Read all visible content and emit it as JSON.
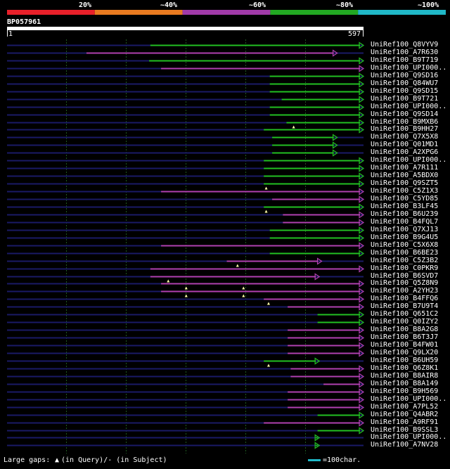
{
  "legend": {
    "labels": [
      "20%",
      "~40%",
      "~60%",
      "~80%",
      "~100%"
    ],
    "colors": [
      "#e8202a",
      "#e87a20",
      "#a03aa8",
      "#22a822",
      "#20b8c8"
    ]
  },
  "query": {
    "id": "BP057961",
    "start": "1",
    "end": "597",
    "length": 597
  },
  "colors": {
    "green": "#22c022",
    "magenta": "#b040b0",
    "backbone": "#1a1a66"
  },
  "hits": [
    {
      "name": "UniRef100_Q8VYV9",
      "start": 240,
      "end": 597,
      "color": "green",
      "gaps": []
    },
    {
      "name": "UniRef100_A7R630",
      "start": 133,
      "end": 553,
      "color": "magenta",
      "gaps": []
    },
    {
      "name": "UniRef100_B9T719",
      "start": 238,
      "end": 597,
      "color": "green",
      "gaps": []
    },
    {
      "name": "UniRef100_UPI000..",
      "start": 258,
      "end": 597,
      "color": "magenta",
      "gaps": []
    },
    {
      "name": "UniRef100_Q9SD16",
      "start": 440,
      "end": 597,
      "color": "green",
      "gaps": []
    },
    {
      "name": "UniRef100_Q84WU7",
      "start": 440,
      "end": 597,
      "color": "green",
      "gaps": []
    },
    {
      "name": "UniRef100_Q9SD15",
      "start": 440,
      "end": 597,
      "color": "green",
      "gaps": []
    },
    {
      "name": "UniRef100_B9T721",
      "start": 460,
      "end": 597,
      "color": "green",
      "gaps": []
    },
    {
      "name": "UniRef100_UPI000..",
      "start": 440,
      "end": 597,
      "color": "green",
      "gaps": []
    },
    {
      "name": "UniRef100_Q9SD14",
      "start": 440,
      "end": 597,
      "color": "green",
      "gaps": []
    },
    {
      "name": "UniRef100_B9MXB6",
      "start": 468,
      "end": 597,
      "color": "green",
      "gaps": [
        480
      ]
    },
    {
      "name": "UniRef100_B9HH27",
      "start": 430,
      "end": 597,
      "color": "green",
      "gaps": []
    },
    {
      "name": "UniRef100_Q7X5X8",
      "start": 444,
      "end": 553,
      "color": "green",
      "gaps": []
    },
    {
      "name": "UniRef100_Q01MD1",
      "start": 444,
      "end": 553,
      "color": "green",
      "gaps": []
    },
    {
      "name": "UniRef100_A2XPG6",
      "start": 444,
      "end": 553,
      "color": "green",
      "gaps": []
    },
    {
      "name": "UniRef100_UPI000..",
      "start": 430,
      "end": 597,
      "color": "green",
      "gaps": []
    },
    {
      "name": "UniRef100_A7R111",
      "start": 430,
      "end": 597,
      "color": "green",
      "gaps": []
    },
    {
      "name": "UniRef100_A5BDX0",
      "start": 430,
      "end": 597,
      "color": "green",
      "gaps": []
    },
    {
      "name": "UniRef100_Q9SZT5",
      "start": 430,
      "end": 597,
      "color": "green",
      "gaps": [
        434
      ]
    },
    {
      "name": "UniRef100_C5Z1X3",
      "start": 258,
      "end": 597,
      "color": "magenta",
      "gaps": []
    },
    {
      "name": "UniRef100_C5YD85",
      "start": 444,
      "end": 597,
      "color": "magenta",
      "gaps": []
    },
    {
      "name": "UniRef100_B3LF45",
      "start": 430,
      "end": 597,
      "color": "green",
      "gaps": [
        434
      ]
    },
    {
      "name": "UniRef100_B6U239",
      "start": 462,
      "end": 597,
      "color": "magenta",
      "gaps": []
    },
    {
      "name": "UniRef100_B4FQL7",
      "start": 462,
      "end": 597,
      "color": "magenta",
      "gaps": []
    },
    {
      "name": "UniRef100_Q7XJ13",
      "start": 440,
      "end": 597,
      "color": "green",
      "gaps": []
    },
    {
      "name": "UniRef100_B9G4U5",
      "start": 440,
      "end": 597,
      "color": "green",
      "gaps": []
    },
    {
      "name": "UniRef100_C5X6X8",
      "start": 258,
      "end": 597,
      "color": "magenta",
      "gaps": []
    },
    {
      "name": "UniRef100_B6BE23",
      "start": 440,
      "end": 597,
      "color": "green",
      "gaps": []
    },
    {
      "name": "UniRef100_C5Z3B2",
      "start": 368,
      "end": 527,
      "color": "magenta",
      "gaps": [
        386
      ]
    },
    {
      "name": "UniRef100_C0PKR9",
      "start": 240,
      "end": 597,
      "color": "magenta",
      "gaps": []
    },
    {
      "name": "UniRef100_B6SVD7",
      "start": 240,
      "end": 523,
      "color": "magenta",
      "gaps": [
        270
      ]
    },
    {
      "name": "UniRef100_Q5Z8N9",
      "start": 258,
      "end": 597,
      "color": "magenta",
      "gaps": [
        300,
        396
      ]
    },
    {
      "name": "UniRef100_A2YH23",
      "start": 258,
      "end": 597,
      "color": "magenta",
      "gaps": [
        300,
        396
      ]
    },
    {
      "name": "UniRef100_B4FFQ6",
      "start": 430,
      "end": 597,
      "color": "magenta",
      "gaps": [
        438
      ]
    },
    {
      "name": "UniRef100_B7U9T4",
      "start": 470,
      "end": 597,
      "color": "magenta",
      "gaps": []
    },
    {
      "name": "UniRef100_Q651C2",
      "start": 520,
      "end": 597,
      "color": "green",
      "gaps": []
    },
    {
      "name": "UniRef100_Q0IZY2",
      "start": 520,
      "end": 597,
      "color": "green",
      "gaps": []
    },
    {
      "name": "UniRef100_B8A2G8",
      "start": 470,
      "end": 597,
      "color": "magenta",
      "gaps": []
    },
    {
      "name": "UniRef100_B6T3J7",
      "start": 470,
      "end": 597,
      "color": "magenta",
      "gaps": []
    },
    {
      "name": "UniRef100_B4FW01",
      "start": 470,
      "end": 597,
      "color": "magenta",
      "gaps": []
    },
    {
      "name": "UniRef100_Q9LX20",
      "start": 470,
      "end": 597,
      "color": "magenta",
      "gaps": []
    },
    {
      "name": "UniRef100_B6UH59",
      "start": 430,
      "end": 523,
      "color": "green",
      "gaps": [
        438
      ]
    },
    {
      "name": "UniRef100_Q6Z8K1",
      "start": 475,
      "end": 597,
      "color": "magenta",
      "gaps": []
    },
    {
      "name": "UniRef100_B8AIR8",
      "start": 475,
      "end": 597,
      "color": "magenta",
      "gaps": []
    },
    {
      "name": "UniRef100_B8A149",
      "start": 530,
      "end": 597,
      "color": "magenta",
      "gaps": []
    },
    {
      "name": "UniRef100_B9H569",
      "start": 470,
      "end": 597,
      "color": "magenta",
      "gaps": []
    },
    {
      "name": "UniRef100_UPI000..",
      "start": 470,
      "end": 597,
      "color": "magenta",
      "gaps": []
    },
    {
      "name": "UniRef100_A7PL52",
      "start": 470,
      "end": 597,
      "color": "magenta",
      "gaps": []
    },
    {
      "name": "UniRef100_Q4ABR2",
      "start": 520,
      "end": 597,
      "color": "green",
      "gaps": []
    },
    {
      "name": "UniRef100_A9RF91",
      "start": 430,
      "end": 597,
      "color": "magenta",
      "gaps": []
    },
    {
      "name": "UniRef100_B9SSL3",
      "start": 520,
      "end": 597,
      "color": "green",
      "gaps": []
    },
    {
      "name": "UniRef100_UPI000..",
      "start": 520,
      "end": 523,
      "color": "green",
      "gaps": []
    },
    {
      "name": "UniRef100_A7NV28",
      "start": 520,
      "end": 523,
      "color": "green",
      "gaps": []
    }
  ],
  "footer": {
    "gaps_label": "Large gaps:",
    "query_gap_label": "(in Query)/- (in Subject)",
    "scale_label": "=100char."
  }
}
